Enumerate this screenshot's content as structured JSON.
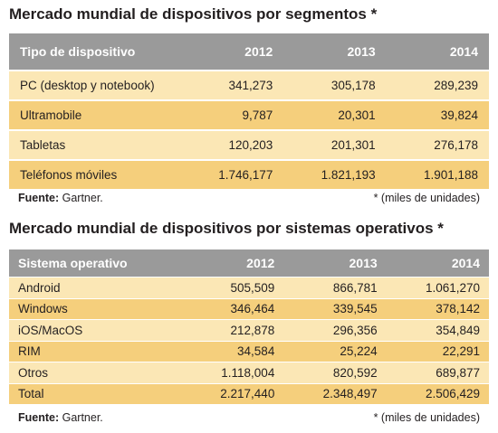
{
  "chart_data": [
    {
      "type": "table",
      "title": "Mercado mundial de dispositivos por segmentos *",
      "columns": [
        "Tipo de dispositivo",
        "2012",
        "2013",
        "2014"
      ],
      "rows": [
        [
          "PC (desktop y notebook)",
          "341,273",
          "305,178",
          "289,239"
        ],
        [
          "Ultramobile",
          "9,787",
          "20,301",
          "39,824"
        ],
        [
          "Tabletas",
          "120,203",
          "201,301",
          "276,178"
        ],
        [
          "Teléfonos móviles",
          "1.746,177",
          "1.821,193",
          "1.901,188"
        ]
      ],
      "source_label": "Fuente:",
      "source_value": " Gartner.",
      "note": "* (miles de unidades)"
    },
    {
      "type": "table",
      "title": "Mercado mundial de dispositivos por sistemas operativos *",
      "columns": [
        "Sistema operativo",
        "2012",
        "2013",
        "2014"
      ],
      "rows": [
        [
          "Android",
          "505,509",
          "866,781",
          "1.061,270"
        ],
        [
          "Windows",
          "346,464",
          "339,545",
          "378,142"
        ],
        [
          "iOS/MacOS",
          "212,878",
          "296,356",
          "354,849"
        ],
        [
          "RIM",
          "34,584",
          "25,224",
          "22,291"
        ],
        [
          "Otros",
          "1.118,004",
          "820,592",
          "689,877"
        ],
        [
          "Total",
          "2.217,440",
          "2.348,497",
          "2.506,429"
        ]
      ],
      "source_label": "Fuente:",
      "source_value": " Gartner.",
      "note": "* (miles de unidades)"
    }
  ],
  "colors": {
    "header_bg": "#9a9a9a",
    "row_light": "#fbe7b5",
    "row_dark": "#f5cf7c"
  }
}
